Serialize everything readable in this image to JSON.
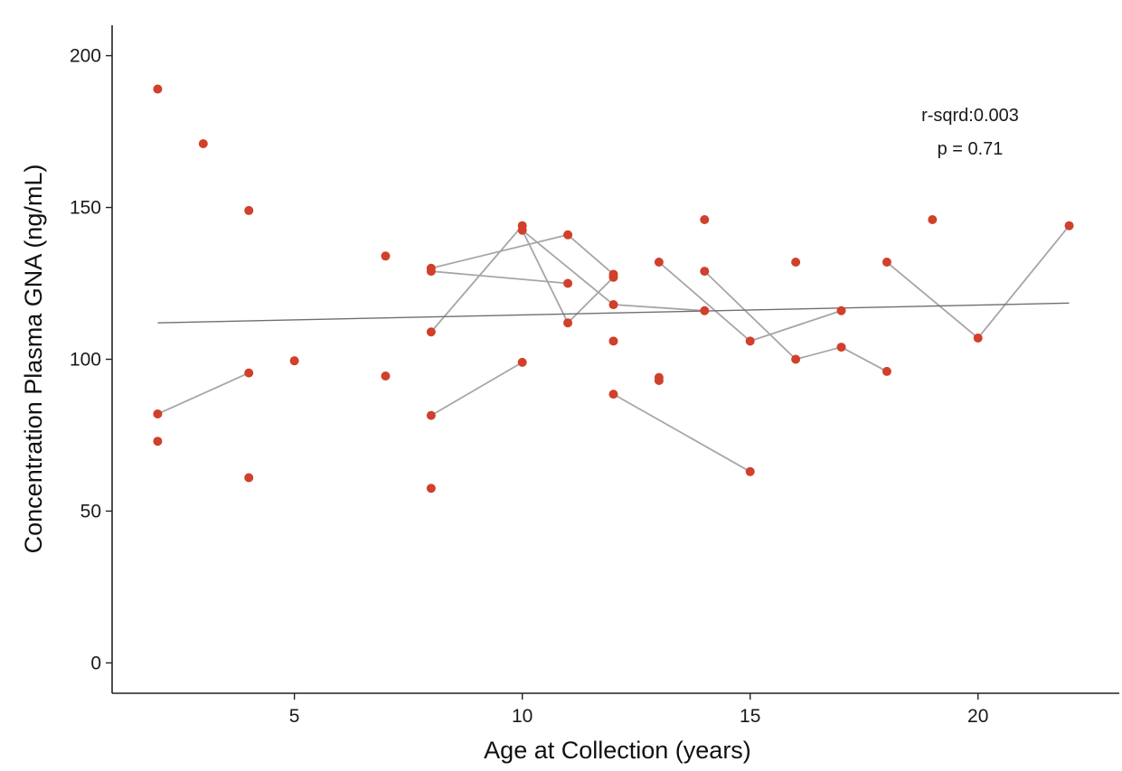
{
  "chart_data": {
    "type": "scatter",
    "xlabel": "Age at Collection (years)",
    "ylabel": "Concentration Plasma GNA (ng/mL)",
    "xlim": [
      1.0,
      23.1
    ],
    "ylim": [
      -10,
      210
    ],
    "x_ticks": [
      5,
      10,
      15,
      20
    ],
    "y_ticks": [
      0,
      50,
      100,
      150,
      200
    ],
    "grid": false,
    "colors": {
      "points": "#d0402a",
      "paired_lines": "#a6a6a6",
      "trend_line": "#6f6f6f",
      "axis": "#222222"
    },
    "annotations": [
      "r-sqrd:0.003",
      "p = 0.71"
    ],
    "points": [
      {
        "x": 2,
        "y": 189
      },
      {
        "x": 3,
        "y": 171
      },
      {
        "x": 4,
        "y": 149
      },
      {
        "x": 2,
        "y": 82
      },
      {
        "x": 4,
        "y": 95.5
      },
      {
        "x": 2,
        "y": 73
      },
      {
        "x": 4,
        "y": 61
      },
      {
        "x": 5,
        "y": 99.5
      },
      {
        "x": 7,
        "y": 134
      },
      {
        "x": 7,
        "y": 94.5
      },
      {
        "x": 8,
        "y": 130
      },
      {
        "x": 8,
        "y": 129
      },
      {
        "x": 8,
        "y": 109
      },
      {
        "x": 8,
        "y": 81.5
      },
      {
        "x": 8,
        "y": 57.5
      },
      {
        "x": 10,
        "y": 144
      },
      {
        "x": 10,
        "y": 142.5
      },
      {
        "x": 10,
        "y": 99
      },
      {
        "x": 11,
        "y": 141
      },
      {
        "x": 11,
        "y": 125
      },
      {
        "x": 11,
        "y": 112
      },
      {
        "x": 12,
        "y": 128
      },
      {
        "x": 12,
        "y": 127
      },
      {
        "x": 12,
        "y": 118
      },
      {
        "x": 12,
        "y": 106
      },
      {
        "x": 12,
        "y": 88.5
      },
      {
        "x": 13,
        "y": 132
      },
      {
        "x": 13,
        "y": 94
      },
      {
        "x": 13,
        "y": 93
      },
      {
        "x": 14,
        "y": 146
      },
      {
        "x": 14,
        "y": 129
      },
      {
        "x": 14,
        "y": 116
      },
      {
        "x": 15,
        "y": 106
      },
      {
        "x": 15,
        "y": 63
      },
      {
        "x": 16,
        "y": 132
      },
      {
        "x": 16,
        "y": 100
      },
      {
        "x": 17,
        "y": 116
      },
      {
        "x": 17,
        "y": 104
      },
      {
        "x": 18,
        "y": 132
      },
      {
        "x": 18,
        "y": 96
      },
      {
        "x": 19,
        "y": 146
      },
      {
        "x": 20,
        "y": 107
      },
      {
        "x": 22,
        "y": 144
      }
    ],
    "paired_segments": [
      [
        [
          2,
          82
        ],
        [
          4,
          95.5
        ]
      ],
      [
        [
          8,
          109
        ],
        [
          10,
          144
        ]
      ],
      [
        [
          8,
          130
        ],
        [
          11,
          141
        ]
      ],
      [
        [
          8,
          129
        ],
        [
          11,
          125
        ]
      ],
      [
        [
          8,
          81.5
        ],
        [
          10,
          99
        ]
      ],
      [
        [
          10,
          142.5
        ],
        [
          11,
          112
        ]
      ],
      [
        [
          10,
          142.5
        ],
        [
          12,
          118
        ]
      ],
      [
        [
          11,
          112
        ],
        [
          12,
          127
        ]
      ],
      [
        [
          11,
          141
        ],
        [
          12,
          128
        ]
      ],
      [
        [
          12,
          118
        ],
        [
          14,
          116
        ]
      ],
      [
        [
          12,
          88.5
        ],
        [
          15,
          63
        ]
      ],
      [
        [
          13,
          132
        ],
        [
          15,
          106
        ]
      ],
      [
        [
          14,
          129
        ],
        [
          16,
          100
        ]
      ],
      [
        [
          15,
          106
        ],
        [
          17,
          116
        ]
      ],
      [
        [
          16,
          100
        ],
        [
          17,
          104
        ]
      ],
      [
        [
          17,
          104
        ],
        [
          18,
          96
        ]
      ],
      [
        [
          18,
          132
        ],
        [
          20,
          107
        ]
      ],
      [
        [
          20,
          107
        ],
        [
          22,
          144
        ]
      ]
    ],
    "trend_line": {
      "x": [
        2,
        22
      ],
      "y": [
        112,
        118.5
      ]
    }
  }
}
